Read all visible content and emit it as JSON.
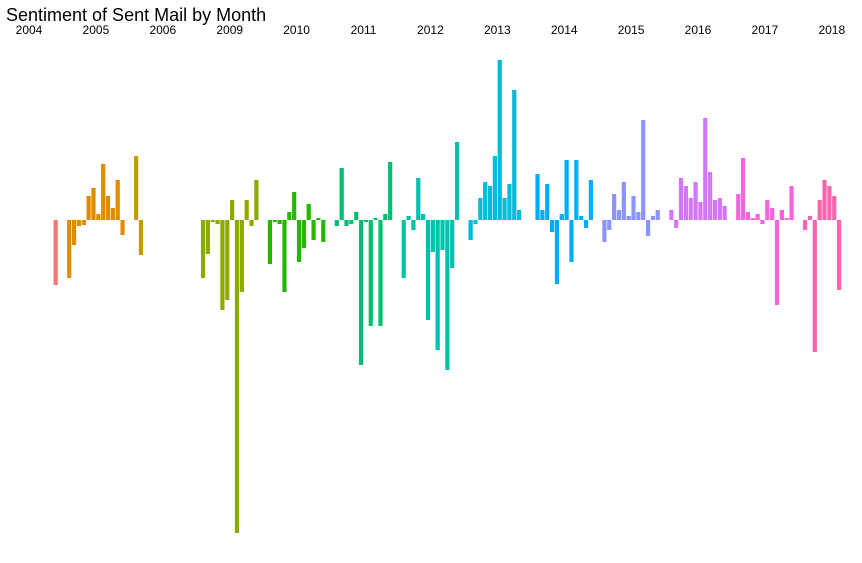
{
  "chart_data": {
    "type": "bar",
    "title": "Sentiment of Sent Mail by Month",
    "facets": [
      {
        "label": "2004",
        "color": "#F8766D",
        "values": [
          null,
          null,
          null,
          null,
          null,
          null,
          null,
          null,
          null,
          null,
          null,
          -65
        ]
      },
      {
        "label": "2005",
        "color": "#E18A00",
        "values": [
          -58,
          -25,
          -6,
          -5,
          24,
          32,
          6,
          56,
          24,
          12,
          40,
          -15
        ]
      },
      {
        "label": "2006",
        "color": "#BE9C00",
        "values": [
          64,
          -35,
          null,
          null,
          null,
          null,
          null,
          null,
          null,
          null,
          null,
          null
        ]
      },
      {
        "label": "2009",
        "color": "#8CAB00",
        "values": [
          -58,
          -34,
          -2,
          -4,
          -90,
          -80,
          20,
          -313,
          -72,
          20,
          -6,
          40
        ]
      },
      {
        "label": "2010",
        "color": "#24B700",
        "values": [
          -44,
          -2,
          -4,
          -72,
          8,
          28,
          -42,
          -28,
          16,
          -20,
          2,
          -22
        ]
      },
      {
        "label": "2011",
        "color": "#00BE70",
        "values": [
          -6,
          52,
          -6,
          -4,
          8,
          -145,
          -2,
          -106,
          2,
          -106,
          6,
          58
        ]
      },
      {
        "label": "2012",
        "color": "#00C1AB",
        "values": [
          -58,
          4,
          -10,
          42,
          6,
          -100,
          -32,
          -130,
          -30,
          -150,
          -48,
          78
        ]
      },
      {
        "label": "2013",
        "color": "#00BBDA",
        "values": [
          -20,
          -4,
          22,
          38,
          34,
          64,
          160,
          22,
          36,
          130,
          10,
          null
        ]
      },
      {
        "label": "2014",
        "color": "#00ACFC",
        "values": [
          46,
          10,
          36,
          -12,
          -64,
          6,
          60,
          -42,
          60,
          4,
          -8,
          40
        ]
      },
      {
        "label": "2015",
        "color": "#8B93FF",
        "values": [
          -22,
          -10,
          26,
          10,
          38,
          4,
          24,
          8,
          100,
          -16,
          4,
          10
        ]
      },
      {
        "label": "2016",
        "color": "#D575FE",
        "values": [
          10,
          -8,
          42,
          34,
          22,
          38,
          18,
          102,
          48,
          20,
          22,
          14
        ]
      },
      {
        "label": "2017",
        "color": "#F962DD",
        "values": [
          26,
          62,
          8,
          2,
          6,
          -4,
          20,
          12,
          -85,
          10,
          2,
          34
        ]
      },
      {
        "label": "2018",
        "color": "#FF65AC",
        "values": [
          -10,
          4,
          -132,
          20,
          40,
          34,
          24,
          -70,
          null,
          null,
          null,
          null
        ]
      }
    ]
  }
}
